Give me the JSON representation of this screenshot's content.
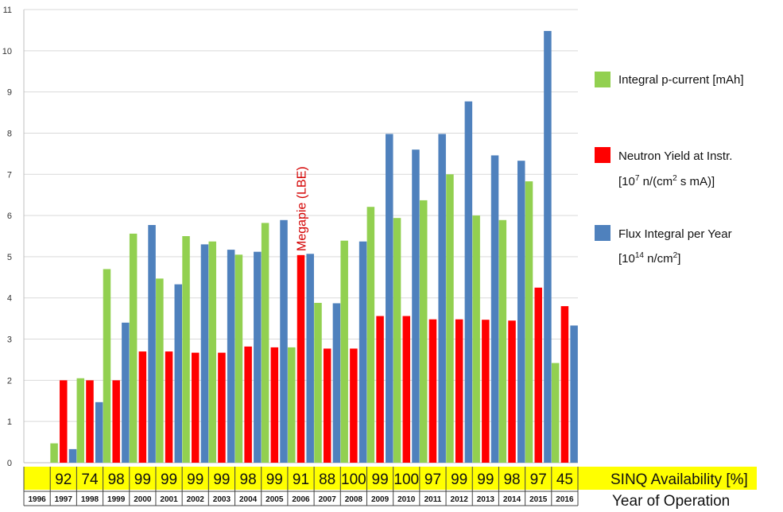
{
  "chart_data": {
    "type": "bar",
    "categories": [
      "1996",
      "1997",
      "1998",
      "1999",
      "2000",
      "2001",
      "2002",
      "2003",
      "2004",
      "2005",
      "2006",
      "2007",
      "2008",
      "2009",
      "2010",
      "2011",
      "2012",
      "2013",
      "2014",
      "2015",
      "2016"
    ],
    "series": [
      {
        "name": "Integral p-current  [mAh]",
        "color": "#92d050",
        "values": [
          0,
          0.47,
          2.05,
          4.7,
          5.56,
          4.47,
          5.5,
          5.37,
          5.05,
          5.82,
          2.8,
          3.88,
          5.39,
          6.21,
          5.94,
          6.37,
          7.0,
          6.0,
          5.89,
          6.83,
          2.42
        ]
      },
      {
        "name": "Neutron Yield at Instr.",
        "unit": "[10^7 n/(cm^2 s mA)]",
        "color": "#ff0000",
        "values": [
          0,
          2.0,
          2.0,
          2.0,
          2.7,
          2.7,
          2.67,
          2.67,
          2.82,
          2.8,
          5.04,
          2.77,
          2.77,
          3.56,
          3.56,
          3.48,
          3.48,
          3.47,
          3.45,
          4.25,
          3.8
        ]
      },
      {
        "name": "Flux Integral per Year",
        "unit": "[10^14 n/cm^2]",
        "color": "#4f81bd",
        "values": [
          0,
          0.33,
          1.47,
          3.4,
          5.77,
          4.33,
          5.3,
          5.17,
          5.12,
          5.89,
          5.07,
          3.87,
          5.37,
          7.98,
          7.6,
          7.98,
          8.77,
          7.46,
          7.33,
          10.48,
          3.33
        ]
      }
    ],
    "ylim": [
      0,
      11
    ],
    "yticks": [
      0,
      1,
      2,
      3,
      4,
      5,
      6,
      7,
      8,
      9,
      10,
      11
    ],
    "grid": true,
    "legend_position": "right",
    "availability": {
      "label": "SINQ  Availability   [%]",
      "values": [
        "",
        "92",
        "74",
        "98",
        "99",
        "99",
        "99",
        "99",
        "98",
        "99",
        "91",
        "88",
        "100",
        "99",
        "100",
        "97",
        "99",
        "99",
        "98",
        "97",
        "45"
      ],
      "band_color": "#ffff00"
    },
    "xlabel": "Year of Operation",
    "annotation": {
      "text": "Megapie  (LBE)",
      "category": "2006"
    }
  },
  "legend": {
    "items": [
      {
        "text": "Integral p-current  [mAh]",
        "color": "#92d050"
      },
      {
        "text": "Neutron Yield at Instr.",
        "color": "#ff0000"
      },
      {
        "text": "Flux Integral per Year",
        "color": "#4f81bd"
      }
    ]
  }
}
